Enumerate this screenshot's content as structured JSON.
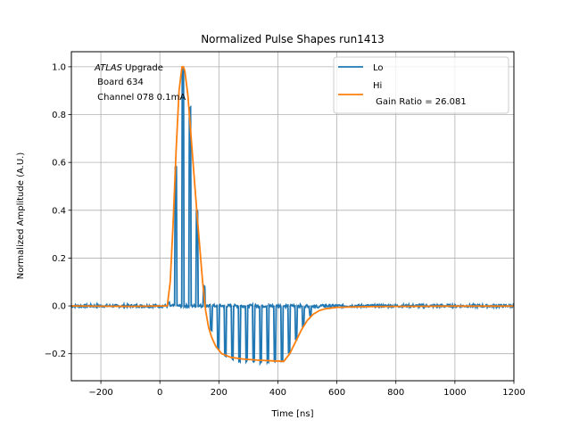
{
  "chart_data": {
    "type": "line",
    "title": "Normalized Pulse Shapes run1413",
    "xlabel": "Time [ns]",
    "ylabel": "Normalized Amplitude (A.U.)",
    "xlim": [
      -300,
      1200
    ],
    "ylim": [
      -0.313,
      1.063
    ],
    "xticks": [
      -200,
      0,
      200,
      400,
      600,
      800,
      1000,
      1200
    ],
    "xtick_labels": [
      "−200",
      "0",
      "200",
      "400",
      "600",
      "800",
      "1000",
      "1200"
    ],
    "yticks": [
      -0.2,
      0.0,
      0.2,
      0.4,
      0.6,
      0.8,
      1.0
    ],
    "ytick_labels": [
      "−0.2",
      "0.0",
      "0.2",
      "0.4",
      "0.6",
      "0.8",
      "1.0"
    ],
    "grid": true,
    "legend_position": "top-right",
    "annotation": {
      "line1_italic": "ATLAS",
      "line1_rest": " Upgrade",
      "line2": " Board 634",
      "line3": " Channel 078 0.1mA"
    },
    "series": [
      {
        "name": "Lo",
        "color": "#1f77b4",
        "baseline": 0.0,
        "spike_times": [
          30,
          54,
          78,
          102,
          126,
          150,
          174,
          198,
          222,
          246,
          270,
          294,
          318,
          342,
          366,
          390,
          414,
          438,
          462,
          486,
          510,
          534
        ],
        "spike_values": [
          0.01,
          0.58,
          0.99,
          0.83,
          0.4,
          0.08,
          -0.1,
          -0.18,
          -0.21,
          -0.22,
          -0.23,
          -0.23,
          -0.23,
          -0.235,
          -0.235,
          -0.23,
          -0.23,
          -0.2,
          -0.14,
          -0.08,
          -0.04,
          -0.01
        ]
      },
      {
        "name": "Hi",
        "legend_extra": " Gain Ratio = 26.081",
        "color": "#ff7f0e",
        "x": [
          -300,
          -100,
          0,
          25,
          35,
          45,
          55,
          65,
          75,
          80,
          85,
          95,
          105,
          115,
          125,
          135,
          145,
          155,
          165,
          175,
          190,
          210,
          240,
          280,
          330,
          380,
          420,
          440,
          460,
          480,
          500,
          520,
          540,
          560,
          600,
          700,
          800,
          1000,
          1200
        ],
        "y": [
          0.0,
          -0.002,
          0.0,
          0.0,
          0.1,
          0.35,
          0.65,
          0.9,
          1.0,
          1.0,
          0.98,
          0.88,
          0.72,
          0.56,
          0.4,
          0.25,
          0.1,
          -0.02,
          -0.09,
          -0.13,
          -0.17,
          -0.2,
          -0.215,
          -0.222,
          -0.227,
          -0.23,
          -0.232,
          -0.2,
          -0.15,
          -0.1,
          -0.06,
          -0.035,
          -0.02,
          -0.012,
          -0.006,
          -0.003,
          -0.002,
          -0.001,
          -0.001
        ]
      }
    ]
  }
}
